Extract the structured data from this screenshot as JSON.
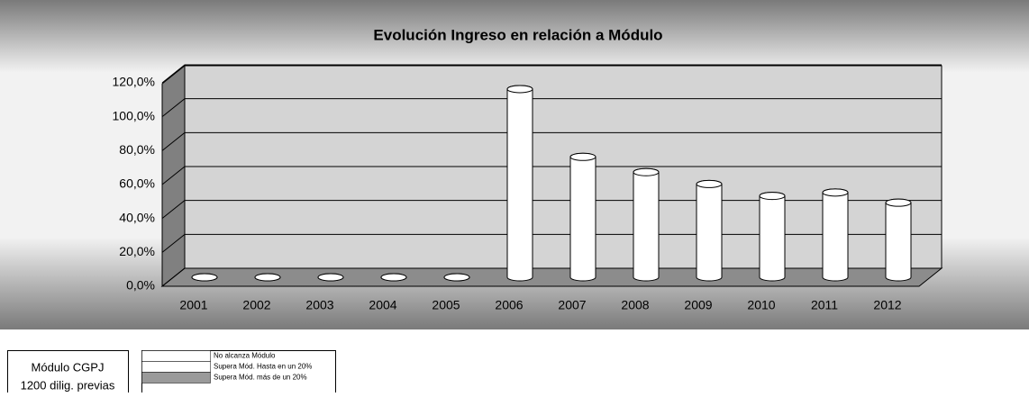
{
  "chart_data": {
    "type": "bar3d",
    "title": "Evolución Ingreso en relación a Módulo",
    "categories": [
      "2001",
      "2002",
      "2003",
      "2004",
      "2005",
      "2006",
      "2007",
      "2008",
      "2009",
      "2010",
      "2011",
      "2012"
    ],
    "values": [
      0,
      0,
      0,
      0,
      0,
      111,
      71,
      62,
      55,
      48,
      50,
      44
    ],
    "color": "#ffffff",
    "ylim": [
      0,
      120
    ],
    "yticks": [
      {
        "value": 0,
        "label": "0,0%"
      },
      {
        "value": 20,
        "label": "20,0%"
      },
      {
        "value": 40,
        "label": "40,0%"
      },
      {
        "value": 60,
        "label": "60,0%"
      },
      {
        "value": 80,
        "label": "80,0%"
      },
      {
        "value": 100,
        "label": "100,0%"
      },
      {
        "value": 120,
        "label": "120,0%"
      }
    ],
    "grid": true
  },
  "module_box": {
    "lines": [
      "Módulo CGPJ",
      "1200 dilig. previas"
    ]
  },
  "key_table": {
    "rows": [
      {
        "label": "No alcanza Módulo",
        "color": "#ffffff"
      },
      {
        "label": "Supera Mód. Hasta en un 20%",
        "color": "#ffffff"
      },
      {
        "label": "Supera Mód. más de un 20%",
        "color": "#9a9a9a"
      }
    ]
  }
}
